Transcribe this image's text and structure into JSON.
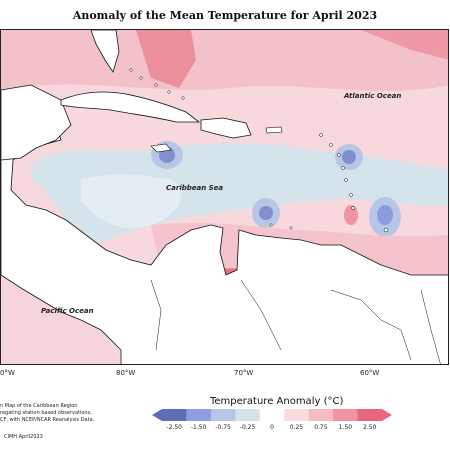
{
  "title": "Anomaly of the Mean Temperature for April 2023",
  "map": {
    "labels": {
      "atlantic": "Atlantic Ocean",
      "caribbean": "Caribbean Sea",
      "pacific": "Pacific Ocean"
    },
    "longitude_labels": [
      "0°W",
      "80°W",
      "70°W",
      "60°W"
    ]
  },
  "footnotes": {
    "line1": "n Map of the Caribbean Region",
    "line2": "regating station based observations,",
    "line3": "CF, with NCEP/NCAR Reanalysis Data.",
    "credit": "CIMH April2023"
  },
  "legend": {
    "title": "Temperature Anomaly (°C)",
    "ticks": [
      "-2.50",
      "-1.50",
      "-0.75",
      "-0.25",
      "0",
      "0.25",
      "0.75",
      "1.50",
      "2.50"
    ],
    "colors": [
      "#5a6fb5",
      "#8f9de0",
      "#b7c5e6",
      "#d4e3ea",
      "#ffffff",
      "#fadbe0",
      "#f5bcc6",
      "#ef93a2",
      "#e9677e"
    ]
  }
}
